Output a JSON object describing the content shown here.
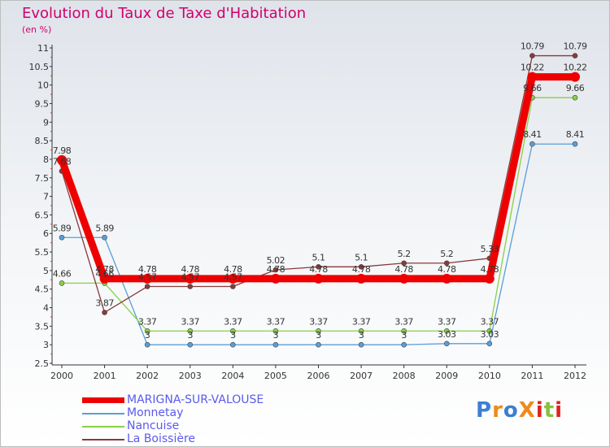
{
  "title": "Evolution du Taux de Taxe d'Habitation",
  "unit": "(en %)",
  "logo": "ProXiti",
  "chart_data": {
    "type": "line",
    "title": "Evolution du Taux de Taxe d'Habitation",
    "ylabel": "(en %)",
    "x": [
      "2000",
      "2001",
      "2002",
      "2003",
      "2004",
      "2005",
      "2006",
      "2007",
      "2008",
      "2009",
      "2010",
      "2011",
      "2012"
    ],
    "ylim": [
      2.5,
      11
    ],
    "yticks": [
      "2.5",
      "3",
      "3.5",
      "4",
      "4.5",
      "5",
      "5.5",
      "6",
      "6.5",
      "7",
      "7.5",
      "8",
      "8.5",
      "9",
      "9.5",
      "10",
      "10.5",
      "11"
    ],
    "grid": false,
    "legend": "bottom-left",
    "series": [
      {
        "name": "MARIGNA-SUR-VALOUSE",
        "color": "#ee0000",
        "values": [
          7.98,
          4.78,
          4.78,
          4.78,
          4.78,
          4.78,
          4.78,
          4.78,
          4.78,
          4.78,
          4.78,
          10.22,
          10.22
        ],
        "labels": [
          "7.98",
          "4.78",
          "4.78",
          "4.78",
          "4.78",
          "4.78",
          "4.78",
          "4.78",
          "4.78",
          "4.78",
          "4.78",
          "10.22",
          "10.22"
        ]
      },
      {
        "name": "Monnetay",
        "color": "#5a9ed8",
        "values": [
          5.89,
          5.89,
          3,
          3,
          3,
          3,
          3,
          3,
          3,
          3.03,
          3.03,
          8.41,
          8.41
        ],
        "labels": [
          "5.89",
          "5.89",
          "3",
          "3",
          "3",
          "3",
          "3",
          "3",
          "3",
          "3.03",
          "3.03",
          "8.41",
          "8.41"
        ]
      },
      {
        "name": "Nancuise",
        "color": "#88d048",
        "values": [
          4.66,
          4.66,
          3.37,
          3.37,
          3.37,
          3.37,
          3.37,
          3.37,
          3.37,
          3.37,
          3.37,
          9.66,
          9.66
        ],
        "labels": [
          "4.66",
          "4.66",
          "3.37",
          "3.37",
          "3.37",
          "3.37",
          "3.37",
          "3.37",
          "3.37",
          "3.37",
          "3.37",
          "9.66",
          "9.66"
        ]
      },
      {
        "name": "La Boissière",
        "color": "#8a3a3a",
        "values": [
          7.68,
          3.87,
          4.57,
          4.57,
          4.57,
          5.02,
          5.1,
          5.1,
          5.2,
          5.2,
          5.33,
          10.79,
          10.79
        ],
        "labels": [
          "7.68",
          "3.87",
          "4.57",
          "4.57",
          "4.57",
          "5.02",
          "5.1",
          "5.1",
          "5.2",
          "5.2",
          "5.33",
          "10.79",
          "10.79"
        ]
      }
    ]
  }
}
